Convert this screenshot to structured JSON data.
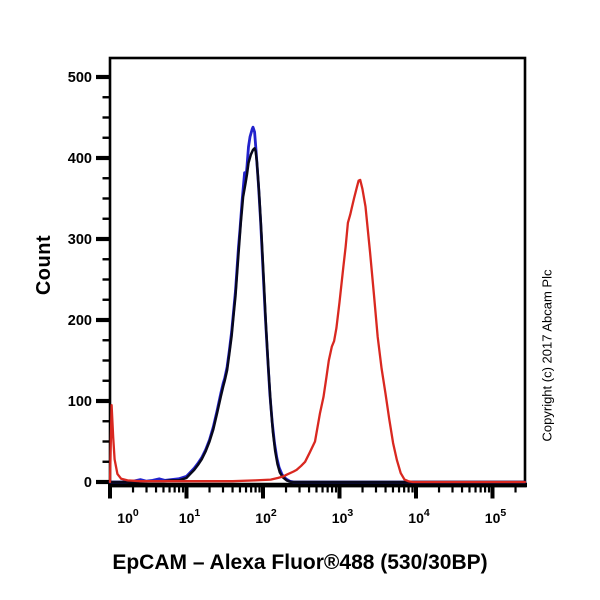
{
  "figure": {
    "title": "EpCAM – Alexa Fluor®488 (530/30BP)",
    "y_label": "Count",
    "copyright": "Copyright (c) 2017 Abcam Plc",
    "background_color": "#ffffff",
    "frame_color": "#000000"
  },
  "chart_data": {
    "type": "line",
    "subtype": "flow-cytometry-histogram",
    "title": "",
    "xlabel": "EpCAM – Alexa Fluor®488 (530/30BP)",
    "ylabel": "Count",
    "x_scale": "log",
    "x_range": [
      1,
      265000
    ],
    "ylim": [
      0,
      500
    ],
    "grid": false,
    "legend": null,
    "x_tick_label_base": "10",
    "x_tick_exponents": [
      0,
      1,
      2,
      3,
      4,
      5
    ],
    "y_ticks": [
      0,
      100,
      200,
      300,
      400,
      500
    ],
    "y_minor_step": 25,
    "series": [
      {
        "name": "blue-histogram",
        "color": "#2222cc",
        "peak": {
          "x": 74,
          "count": 438
        },
        "points": [
          [
            1,
            0
          ],
          [
            1.6,
            0
          ],
          [
            2,
            1
          ],
          [
            2.5,
            3
          ],
          [
            3,
            1
          ],
          [
            3.6,
            2
          ],
          [
            4.4,
            4
          ],
          [
            5.2,
            2
          ],
          [
            6.3,
            3
          ],
          [
            7.9,
            4
          ],
          [
            10,
            7
          ],
          [
            11.2,
            12
          ],
          [
            12.6,
            17
          ],
          [
            14.1,
            23
          ],
          [
            15.8,
            30
          ],
          [
            17.8,
            40
          ],
          [
            20,
            52
          ],
          [
            22.4,
            68
          ],
          [
            25.1,
            88
          ],
          [
            28.2,
            110
          ],
          [
            30.2,
            122
          ],
          [
            31.6,
            128
          ],
          [
            33.9,
            142
          ],
          [
            36.3,
            162
          ],
          [
            38.9,
            185
          ],
          [
            41.7,
            215
          ],
          [
            43.7,
            236
          ],
          [
            47.9,
            290
          ],
          [
            50.1,
            312
          ],
          [
            53.7,
            350
          ],
          [
            57.5,
            382
          ],
          [
            59.6,
            374
          ],
          [
            61.7,
            390
          ],
          [
            64.6,
            414
          ],
          [
            67.6,
            426
          ],
          [
            72.4,
            436
          ],
          [
            74.1,
            438
          ],
          [
            77.6,
            432
          ],
          [
            81.3,
            408
          ],
          [
            87.1,
            368
          ],
          [
            93.3,
            320
          ],
          [
            100,
            262
          ],
          [
            107.2,
            205
          ],
          [
            114.8,
            155
          ],
          [
            123,
            108
          ],
          [
            131.8,
            74
          ],
          [
            141.3,
            48
          ],
          [
            151.4,
            30
          ],
          [
            162.2,
            18
          ],
          [
            177.8,
            9
          ],
          [
            199.5,
            4
          ],
          [
            223.9,
            1
          ],
          [
            251.2,
            0
          ],
          [
            265000,
            0
          ]
        ]
      },
      {
        "name": "black-histogram",
        "color": "#08081c",
        "peak": {
          "x": 77,
          "count": 412
        },
        "points": [
          [
            1,
            0
          ],
          [
            2,
            0
          ],
          [
            3.2,
            1
          ],
          [
            5,
            1
          ],
          [
            6.3,
            2
          ],
          [
            7.9,
            2
          ],
          [
            10,
            5
          ],
          [
            11.2,
            10
          ],
          [
            12.6,
            15
          ],
          [
            14.1,
            21
          ],
          [
            15.8,
            28
          ],
          [
            17.8,
            38
          ],
          [
            20,
            50
          ],
          [
            22.4,
            65
          ],
          [
            25.1,
            85
          ],
          [
            28.2,
            106
          ],
          [
            30.2,
            118
          ],
          [
            31.6,
            125
          ],
          [
            33.9,
            138
          ],
          [
            36.3,
            158
          ],
          [
            38.9,
            180
          ],
          [
            41.7,
            210
          ],
          [
            43.7,
            230
          ],
          [
            47.9,
            282
          ],
          [
            51.3,
            320
          ],
          [
            55,
            352
          ],
          [
            58.9,
            368
          ],
          [
            61.7,
            380
          ],
          [
            64.6,
            394
          ],
          [
            69.2,
            404
          ],
          [
            74.1,
            410
          ],
          [
            77.6,
            412
          ],
          [
            80.2,
            408
          ],
          [
            83.2,
            395
          ],
          [
            89.1,
            355
          ],
          [
            95.5,
            305
          ],
          [
            102.3,
            248
          ],
          [
            109.6,
            192
          ],
          [
            117.5,
            140
          ],
          [
            125.9,
            96
          ],
          [
            134.9,
            62
          ],
          [
            144.5,
            38
          ],
          [
            154.9,
            22
          ],
          [
            166,
            12
          ],
          [
            181,
            6
          ],
          [
            204,
            2
          ],
          [
            234,
            0
          ],
          [
            265000,
            0
          ]
        ]
      },
      {
        "name": "red-histogram",
        "color": "#d92820",
        "peak": {
          "x": 1800,
          "count": 373
        },
        "points": [
          [
            1,
            0
          ],
          [
            1.03,
            60
          ],
          [
            1.05,
            95
          ],
          [
            1.1,
            55
          ],
          [
            1.15,
            28
          ],
          [
            1.25,
            10
          ],
          [
            1.4,
            4
          ],
          [
            1.7,
            2
          ],
          [
            2.5,
            1
          ],
          [
            5,
            1
          ],
          [
            10,
            1
          ],
          [
            20,
            1
          ],
          [
            40,
            1
          ],
          [
            79,
            2
          ],
          [
            126,
            3
          ],
          [
            158,
            5
          ],
          [
            186,
            7
          ],
          [
            204,
            9
          ],
          [
            251,
            13
          ],
          [
            275,
            15
          ],
          [
            316,
            20
          ],
          [
            355,
            25
          ],
          [
            407,
            36
          ],
          [
            479,
            50
          ],
          [
            556,
            85
          ],
          [
            617,
            105
          ],
          [
            676,
            130
          ],
          [
            724,
            150
          ],
          [
            794,
            167
          ],
          [
            851,
            174
          ],
          [
            912,
            190
          ],
          [
            1000,
            222
          ],
          [
            1122,
            265
          ],
          [
            1202,
            290
          ],
          [
            1288,
            320
          ],
          [
            1380,
            330
          ],
          [
            1445,
            338
          ],
          [
            1549,
            350
          ],
          [
            1698,
            365
          ],
          [
            1778,
            372
          ],
          [
            1862,
            373
          ],
          [
            1995,
            362
          ],
          [
            2188,
            340
          ],
          [
            2512,
            283
          ],
          [
            2818,
            232
          ],
          [
            3162,
            179
          ],
          [
            3548,
            140
          ],
          [
            3981,
            110
          ],
          [
            4467,
            78
          ],
          [
            5012,
            48
          ],
          [
            5623,
            27
          ],
          [
            6310,
            11
          ],
          [
            7079,
            3
          ],
          [
            7943,
            1
          ],
          [
            9120,
            0
          ],
          [
            265000,
            0
          ]
        ]
      }
    ]
  }
}
